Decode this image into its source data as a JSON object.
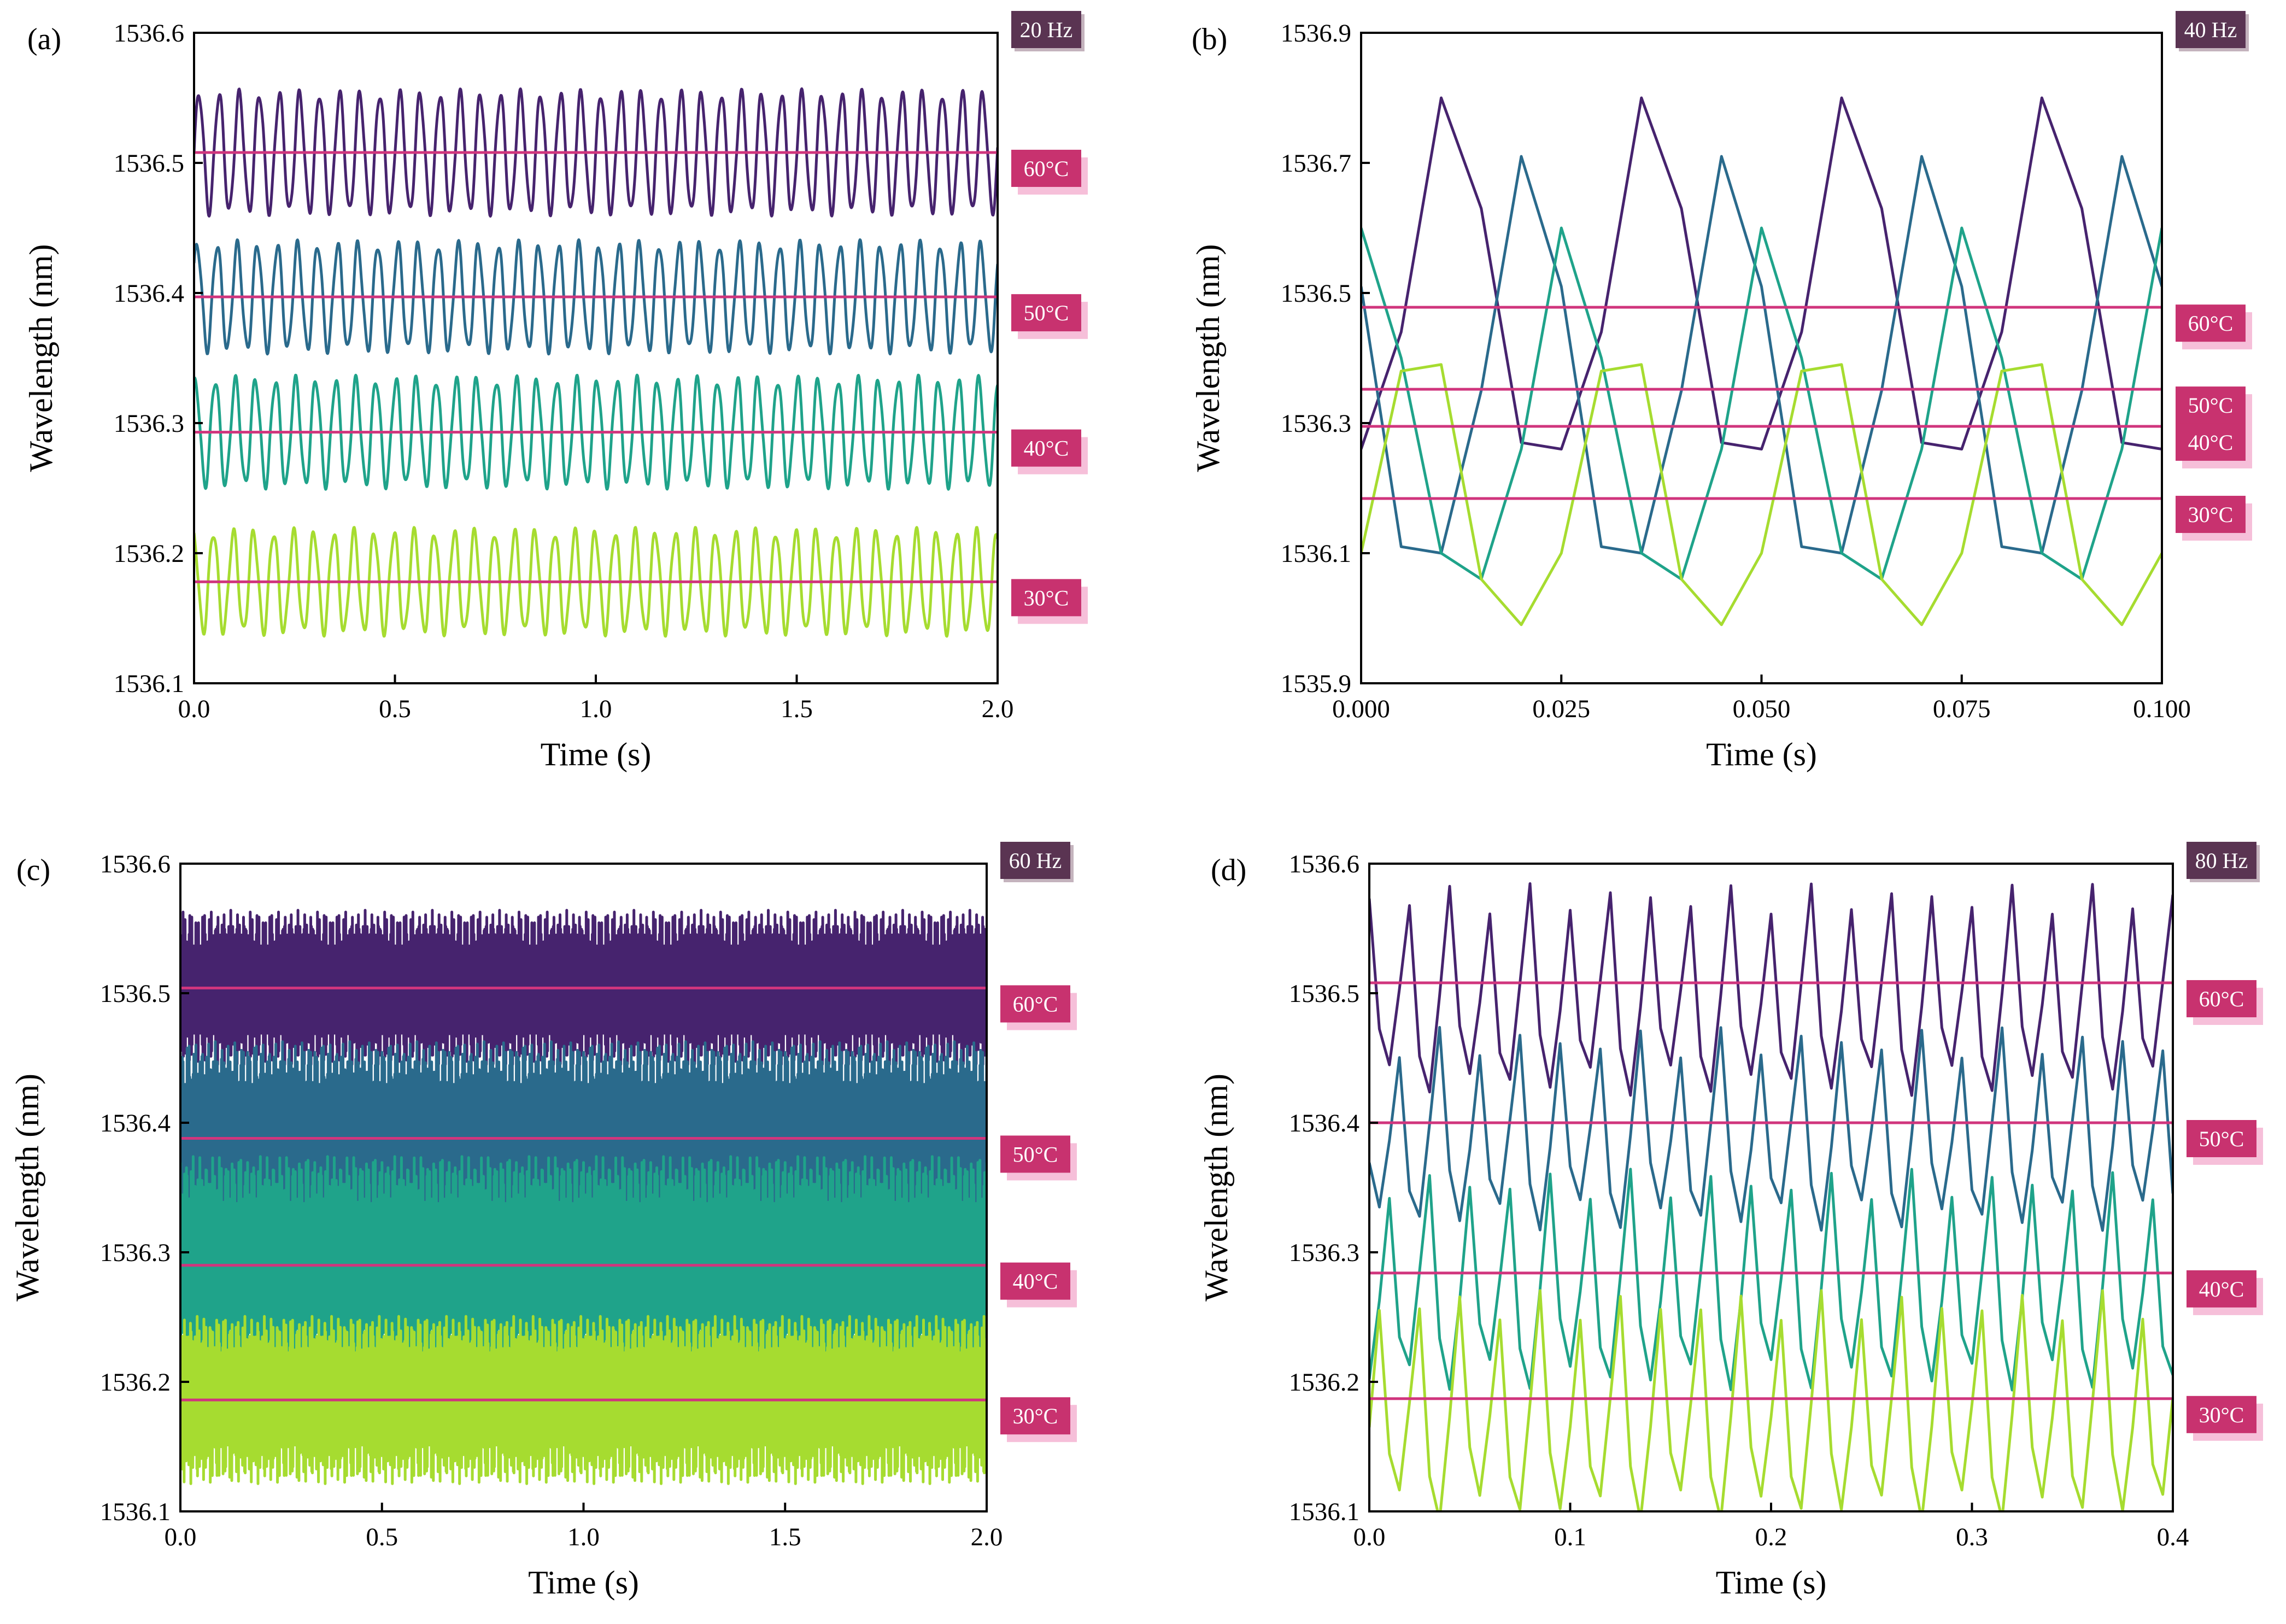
{
  "colors": {
    "s60": "#46236e",
    "s50": "#2a6a8c",
    "s40": "#1fa38a",
    "s30": "#a6dc30",
    "mean_line": "#d0357d",
    "temp_tag": "#c8326f",
    "temp_shadow": "#f6bfd9",
    "freq_tag": "#5a3452",
    "freq_shadow": "#c4b3bd"
  },
  "chart_data": [
    {
      "type": "line",
      "panel_label": "(a)",
      "frequency_label": "20 Hz",
      "xlabel": "Time (s)",
      "ylabel": "Wavelength (nm)",
      "xlim": [
        0.0,
        2.0
      ],
      "ylim": [
        1536.1,
        1536.6
      ],
      "xticks": [
        "0.0",
        "0.5",
        "1.0",
        "1.5",
        "2.0"
      ],
      "yticks": [
        "1536.1",
        "1536.2",
        "1536.3",
        "1536.4",
        "1536.5",
        "1536.6"
      ],
      "grid": false,
      "waveform": "sine",
      "cycles": 40,
      "series": [
        {
          "name": "60°C",
          "color_key": "s60",
          "mean": 1536.508,
          "amplitude": 0.045
        },
        {
          "name": "50°C",
          "color_key": "s50",
          "mean": 1536.397,
          "amplitude": 0.04
        },
        {
          "name": "40°C",
          "color_key": "s40",
          "mean": 1536.293,
          "amplitude": 0.04
        },
        {
          "name": "30°C",
          "color_key": "s30",
          "mean": 1536.178,
          "amplitude": 0.038
        }
      ]
    },
    {
      "type": "line",
      "panel_label": "(b)",
      "frequency_label": "40 Hz",
      "xlabel": "Time (s)",
      "ylabel": "Wavelength (nm)",
      "xlim": [
        0.0,
        0.1
      ],
      "ylim": [
        1535.9,
        1536.9
      ],
      "xticks": [
        "0.000",
        "0.025",
        "0.050",
        "0.075",
        "0.100"
      ],
      "yticks": [
        "1535.9",
        "1536.1",
        "1536.3",
        "1536.5",
        "1536.7",
        "1536.9"
      ],
      "grid": false,
      "series": [
        {
          "name": "60°C",
          "color_key": "s60",
          "mean": 1536.478,
          "x": [
            0,
            0.005,
            0.01,
            0.015,
            0.02,
            0.025,
            0.03,
            0.035,
            0.04,
            0.045,
            0.05,
            0.055,
            0.06,
            0.065,
            0.07,
            0.075,
            0.08,
            0.085,
            0.09,
            0.095,
            0.1
          ],
          "y": [
            1536.26,
            1536.44,
            1536.8,
            1536.63,
            1536.27,
            1536.26,
            1536.44,
            1536.8,
            1536.63,
            1536.27,
            1536.26,
            1536.44,
            1536.8,
            1536.63,
            1536.27,
            1536.26,
            1536.44,
            1536.8,
            1536.63,
            1536.27,
            1536.26
          ]
        },
        {
          "name": "50°C",
          "color_key": "s50",
          "mean": 1536.352,
          "x": [
            0,
            0.005,
            0.01,
            0.015,
            0.02,
            0.025,
            0.03,
            0.035,
            0.04,
            0.045,
            0.05,
            0.055,
            0.06,
            0.065,
            0.07,
            0.075,
            0.08,
            0.085,
            0.09,
            0.095,
            0.1
          ],
          "y": [
            1536.51,
            1536.11,
            1536.1,
            1536.35,
            1536.71,
            1536.51,
            1536.11,
            1536.1,
            1536.35,
            1536.71,
            1536.51,
            1536.11,
            1536.1,
            1536.35,
            1536.71,
            1536.51,
            1536.11,
            1536.1,
            1536.35,
            1536.71,
            1536.51
          ]
        },
        {
          "name": "40°C",
          "color_key": "s40",
          "mean": 1536.295,
          "x": [
            0,
            0.005,
            0.01,
            0.015,
            0.02,
            0.025,
            0.03,
            0.035,
            0.04,
            0.045,
            0.05,
            0.055,
            0.06,
            0.065,
            0.07,
            0.075,
            0.08,
            0.085,
            0.09,
            0.095,
            0.1
          ],
          "y": [
            1536.6,
            1536.4,
            1536.1,
            1536.06,
            1536.26,
            1536.6,
            1536.4,
            1536.1,
            1536.06,
            1536.26,
            1536.6,
            1536.4,
            1536.1,
            1536.06,
            1536.26,
            1536.6,
            1536.4,
            1536.1,
            1536.06,
            1536.26,
            1536.6
          ]
        },
        {
          "name": "30°C",
          "color_key": "s30",
          "mean": 1536.184,
          "x": [
            0,
            0.005,
            0.01,
            0.015,
            0.02,
            0.025,
            0.03,
            0.035,
            0.04,
            0.045,
            0.05,
            0.055,
            0.06,
            0.065,
            0.07,
            0.075,
            0.08,
            0.085,
            0.09,
            0.095,
            0.1
          ],
          "y": [
            1536.1,
            1536.38,
            1536.39,
            1536.06,
            1535.99,
            1536.1,
            1536.38,
            1536.39,
            1536.06,
            1535.99,
            1536.1,
            1536.38,
            1536.39,
            1536.06,
            1535.99,
            1536.1,
            1536.38,
            1536.39,
            1536.06,
            1535.99,
            1536.1
          ]
        }
      ]
    },
    {
      "type": "line",
      "panel_label": "(c)",
      "frequency_label": "60 Hz",
      "xlabel": "Time (s)",
      "ylabel": "Wavelength (nm)",
      "xlim": [
        0.0,
        2.0
      ],
      "ylim": [
        1536.1,
        1536.6
      ],
      "xticks": [
        "0.0",
        "0.5",
        "1.0",
        "1.5",
        "2.0"
      ],
      "yticks": [
        "1536.1",
        "1536.2",
        "1536.3",
        "1536.4",
        "1536.5",
        "1536.6"
      ],
      "grid": false,
      "waveform": "dense-oscillation",
      "cycles": 120,
      "series": [
        {
          "name": "60°C",
          "color_key": "s60",
          "mean": 1536.504,
          "amplitude": 0.06
        },
        {
          "name": "50°C",
          "color_key": "s50",
          "mean": 1536.388,
          "amplitude": 0.075
        },
        {
          "name": "40°C",
          "color_key": "s40",
          "mean": 1536.29,
          "amplitude": 0.085
        },
        {
          "name": "30°C",
          "color_key": "s30",
          "mean": 1536.186,
          "amplitude": 0.065
        }
      ]
    },
    {
      "type": "line",
      "panel_label": "(d)",
      "frequency_label": "80 Hz",
      "xlabel": "Time (s)",
      "ylabel": "Wavelength (nm)",
      "xlim": [
        0.0,
        0.4
      ],
      "ylim": [
        1536.1,
        1536.6
      ],
      "xticks": [
        "0.0",
        "0.1",
        "0.2",
        "0.3",
        "0.4"
      ],
      "yticks": [
        "1536.1",
        "1536.2",
        "1536.3",
        "1536.4",
        "1536.5",
        "1536.6"
      ],
      "grid": false,
      "waveform": "sampled-sawtooth",
      "sample_interval": 0.005,
      "pattern_y_offsets": [
        0.065,
        -0.045,
        -0.075,
        -0.01
      ],
      "series": [
        {
          "name": "60°C",
          "color_key": "s60",
          "mean": 1536.508,
          "amplitude": 1.0
        },
        {
          "name": "50°C",
          "color_key": "s50",
          "mean": 1536.4,
          "amplitude": 0.95
        },
        {
          "name": "40°C",
          "color_key": "s40",
          "mean": 1536.284,
          "amplitude": 1.05
        },
        {
          "name": "30°C",
          "color_key": "s30",
          "mean": 1536.187,
          "amplitude": 1.1
        }
      ]
    }
  ]
}
